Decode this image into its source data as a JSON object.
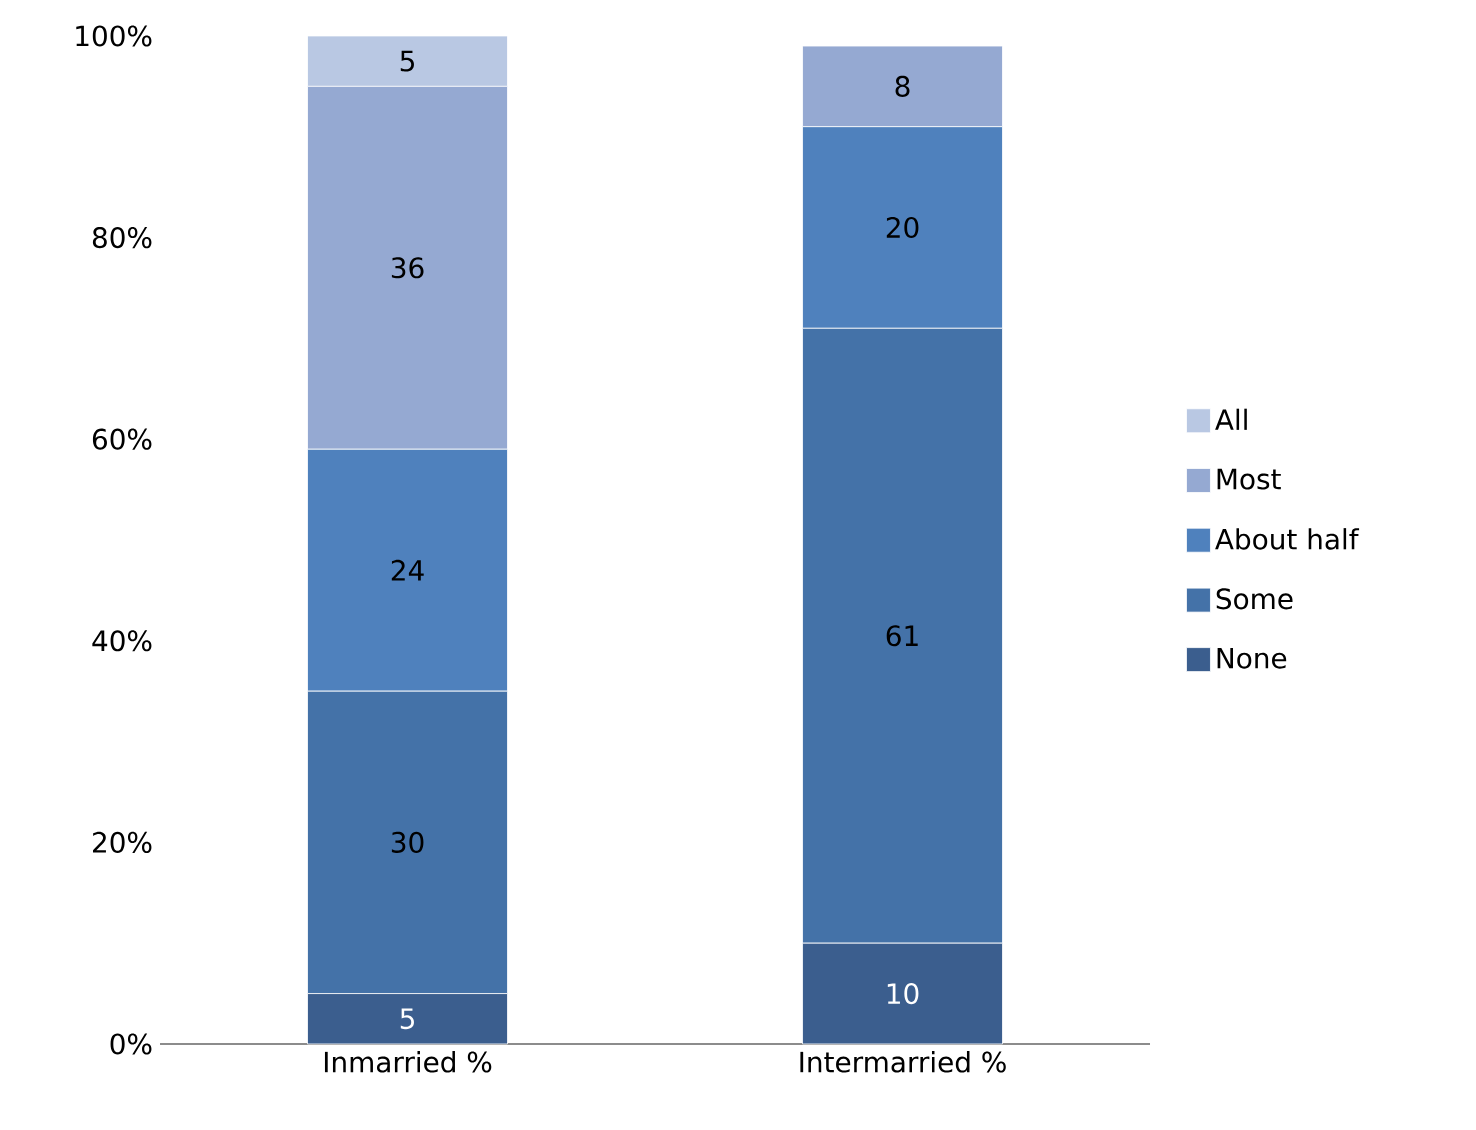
{
  "chart_data": {
    "type": "bar",
    "stacked": true,
    "categories": [
      "Inmarried %",
      "Intermarried %"
    ],
    "series": [
      {
        "name": "None",
        "color": "#3b5e8e",
        "values": [
          5,
          10
        ]
      },
      {
        "name": "Some",
        "color": "#4472a8",
        "values": [
          30,
          61
        ]
      },
      {
        "name": "About half",
        "color": "#4f81bd",
        "values": [
          24,
          20
        ]
      },
      {
        "name": "Most",
        "color": "#95a9d2",
        "values": [
          36,
          8
        ]
      },
      {
        "name": "All",
        "color": "#b9c8e3",
        "values": [
          5,
          null
        ]
      }
    ],
    "ylim": [
      0,
      100
    ],
    "yticks": [
      {
        "value": 0,
        "label": "0%"
      },
      {
        "value": 20,
        "label": "20%"
      },
      {
        "value": 40,
        "label": "40%"
      },
      {
        "value": 60,
        "label": "60%"
      },
      {
        "value": 80,
        "label": "80%"
      },
      {
        "value": 100,
        "label": "100%"
      }
    ],
    "data_labels": true,
    "legend": "right",
    "grid": false
  }
}
